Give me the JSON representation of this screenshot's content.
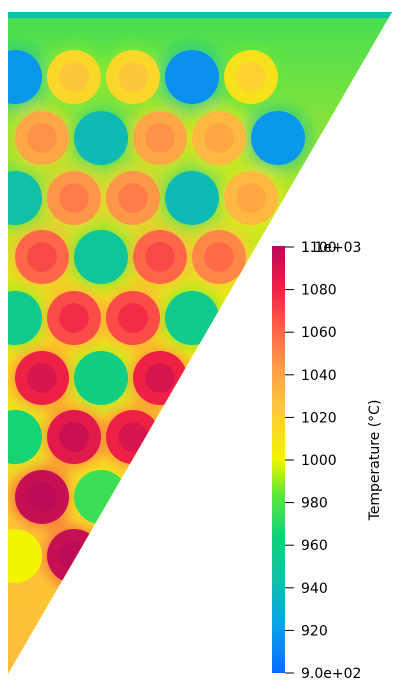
{
  "chart_data": {
    "type": "heatmap",
    "colorbar": {
      "title": "Temperature (°C)",
      "range": [
        900,
        1100
      ],
      "max_label": "1.1e+03",
      "min_label": "9.0e+02",
      "ticks": [
        {
          "value": 1100,
          "label": "1100"
        },
        {
          "value": 1080,
          "label": "1080"
        },
        {
          "value": 1060,
          "label": "1060"
        },
        {
          "value": 1040,
          "label": "1040"
        },
        {
          "value": 1020,
          "label": "1020"
        },
        {
          "value": 1000,
          "label": "1000"
        },
        {
          "value": 980,
          "label": "980"
        },
        {
          "value": 960,
          "label": "960"
        },
        {
          "value": 940,
          "label": "940"
        },
        {
          "value": 920,
          "label": "920"
        }
      ],
      "colormap": [
        {
          "t": 0.0,
          "color": "#0a6cff"
        },
        {
          "t": 0.12,
          "color": "#0aa6e6"
        },
        {
          "t": 0.22,
          "color": "#11bfa8"
        },
        {
          "t": 0.32,
          "color": "#12d278"
        },
        {
          "t": 0.42,
          "color": "#5ee83a"
        },
        {
          "t": 0.5,
          "color": "#f2f400"
        },
        {
          "t": 0.62,
          "color": "#ffc640"
        },
        {
          "t": 0.72,
          "color": "#ff9a48"
        },
        {
          "t": 0.82,
          "color": "#ff5a48"
        },
        {
          "t": 0.9,
          "color": "#ee2046"
        },
        {
          "t": 1.0,
          "color": "#b80a58"
        }
      ]
    },
    "domain_colors": {
      "background_top": 975,
      "background_mid": 1005,
      "background_bottom": 1030
    },
    "pins": [
      {
        "row": 0,
        "col": 0,
        "temp": 918
      },
      {
        "row": 0,
        "col": 1,
        "temp": 1015
      },
      {
        "row": 0,
        "col": 2,
        "temp": 1015
      },
      {
        "row": 0,
        "col": 3,
        "temp": 915
      },
      {
        "row": 0,
        "col": 4,
        "temp": 1010
      },
      {
        "row": 1,
        "col": 0,
        "temp": 1038
      },
      {
        "row": 1,
        "col": 1,
        "temp": 940
      },
      {
        "row": 1,
        "col": 2,
        "temp": 1038
      },
      {
        "row": 1,
        "col": 3,
        "temp": 1030
      },
      {
        "row": 1,
        "col": 4,
        "temp": 918
      },
      {
        "row": 2,
        "col": 0,
        "temp": 945
      },
      {
        "row": 2,
        "col": 1,
        "temp": 1045
      },
      {
        "row": 2,
        "col": 2,
        "temp": 1045
      },
      {
        "row": 2,
        "col": 3,
        "temp": 940
      },
      {
        "row": 2,
        "col": 4,
        "temp": 1030
      },
      {
        "row": 3,
        "col": 0,
        "temp": 1060
      },
      {
        "row": 3,
        "col": 1,
        "temp": 950
      },
      {
        "row": 3,
        "col": 2,
        "temp": 1060
      },
      {
        "row": 3,
        "col": 3,
        "temp": 1050
      },
      {
        "row": 4,
        "col": 0,
        "temp": 955
      },
      {
        "row": 4,
        "col": 1,
        "temp": 1068
      },
      {
        "row": 4,
        "col": 2,
        "temp": 1068
      },
      {
        "row": 4,
        "col": 3,
        "temp": 955
      },
      {
        "row": 5,
        "col": 0,
        "temp": 1080
      },
      {
        "row": 5,
        "col": 1,
        "temp": 960
      },
      {
        "row": 5,
        "col": 2,
        "temp": 1080
      },
      {
        "row": 6,
        "col": 0,
        "temp": 965
      },
      {
        "row": 6,
        "col": 1,
        "temp": 1085
      },
      {
        "row": 6,
        "col": 2,
        "temp": 1080
      },
      {
        "row": 7,
        "col": 0,
        "temp": 1095
      },
      {
        "row": 7,
        "col": 1,
        "temp": 975
      },
      {
        "row": 8,
        "col": 0,
        "temp": 1000
      },
      {
        "row": 8,
        "col": 1,
        "temp": 1095
      }
    ]
  }
}
